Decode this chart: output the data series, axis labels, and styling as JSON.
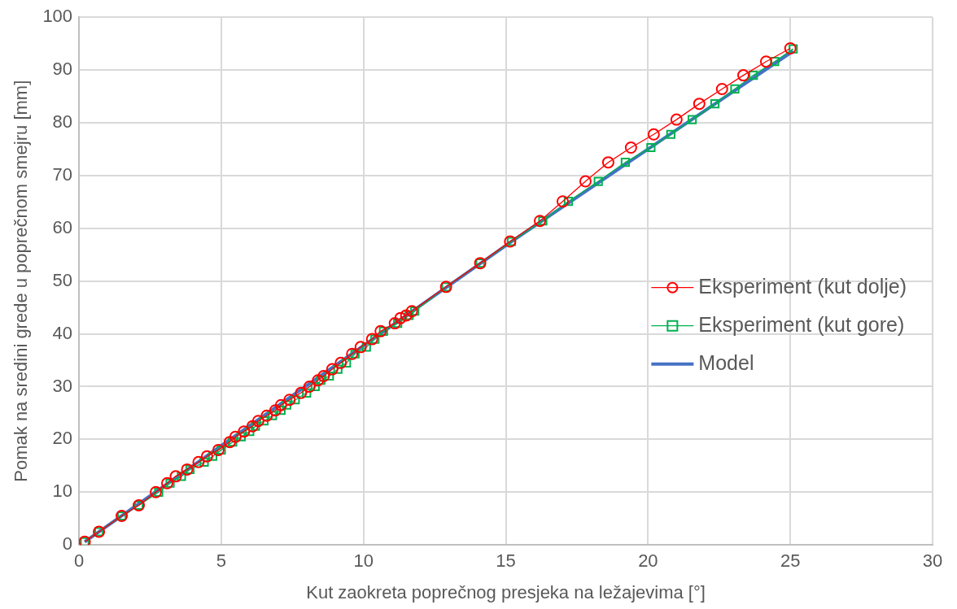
{
  "chart_data": {
    "type": "line",
    "xlabel": "Kut zaokreta poprečnog presjeka na ležajevima [°]",
    "ylabel": "Pomak na sredini grede u poprečnom smejru [mm]",
    "xlim": [
      0,
      30
    ],
    "xticks": [
      0,
      5,
      10,
      15,
      20,
      25,
      30
    ],
    "ylim": [
      0,
      100
    ],
    "yticks": [
      0,
      10,
      20,
      30,
      40,
      50,
      60,
      70,
      80,
      90,
      100
    ],
    "grid": true,
    "legend": "right",
    "series": [
      {
        "name": "Eksperiment (kut dolje)",
        "color": "#ff0000",
        "marker": "circle",
        "x": [
          0.2,
          0.7,
          1.5,
          2.1,
          2.7,
          3.1,
          3.4,
          3.8,
          4.2,
          4.5,
          4.9,
          5.3,
          5.5,
          5.8,
          6.1,
          6.3,
          6.6,
          6.9,
          7.1,
          7.4,
          7.8,
          8.1,
          8.4,
          8.6,
          8.9,
          9.2,
          9.6,
          9.9,
          10.3,
          10.6,
          11.1,
          11.3,
          11.5,
          11.7,
          12.9,
          14.1,
          15.15,
          16.2,
          17.0,
          17.8,
          18.6,
          19.4,
          20.2,
          21.0,
          21.8,
          22.6,
          23.35,
          24.15,
          25.0
        ],
        "values": [
          0.6,
          2.5,
          5.5,
          7.5,
          10,
          11.7,
          13,
          14.3,
          15.7,
          16.8,
          18,
          19.5,
          20.5,
          21.5,
          22.5,
          23.5,
          24.5,
          25.5,
          26.5,
          27.5,
          28.8,
          30,
          31.2,
          32,
          33.3,
          34.5,
          36.2,
          37.5,
          39,
          40.5,
          42,
          43,
          43.5,
          44.3,
          48.9,
          53.4,
          57.5,
          61.4,
          65.1,
          68.9,
          72.5,
          75.3,
          77.8,
          80.6,
          83.6,
          86.4,
          89.0,
          91.6,
          94.1
        ]
      },
      {
        "name": "Eksperiment (kut gore)",
        "color": "#00b050",
        "marker": "square",
        "x": [
          0.2,
          0.7,
          1.5,
          2.1,
          2.8,
          3.2,
          3.6,
          3.9,
          4.4,
          4.7,
          5.0,
          5.4,
          5.7,
          6.0,
          6.2,
          6.5,
          6.8,
          7.1,
          7.3,
          7.6,
          8.0,
          8.3,
          8.5,
          8.8,
          9.1,
          9.4,
          9.7,
          10.1,
          10.4,
          10.7,
          11.2,
          11.4,
          11.6,
          11.8,
          12.9,
          14.1,
          15.2,
          16.3,
          17.2,
          18.25,
          19.2,
          20.1,
          20.8,
          21.55,
          22.35,
          23.05,
          23.7,
          24.45,
          25.1
        ],
        "values": [
          0.6,
          2.5,
          5.5,
          7.5,
          10,
          11.7,
          13,
          14.3,
          15.7,
          16.8,
          18,
          19.5,
          20.5,
          21.5,
          22.5,
          23.5,
          24.5,
          25.5,
          26.5,
          27.5,
          28.8,
          30,
          31.2,
          32,
          33.3,
          34.5,
          36.2,
          37.5,
          39,
          40.5,
          42,
          null,
          43.5,
          44.3,
          48.9,
          53.4,
          57.5,
          61.4,
          65.1,
          68.9,
          72.5,
          75.3,
          77.8,
          80.6,
          83.6,
          86.4,
          89.0,
          91.6,
          94.0
        ]
      },
      {
        "name": "Model",
        "color": "#4472c4",
        "marker": "none",
        "x": [
          0.2,
          15.2,
          25.1
        ],
        "values": [
          0.6,
          57.5,
          93.6
        ]
      }
    ]
  }
}
